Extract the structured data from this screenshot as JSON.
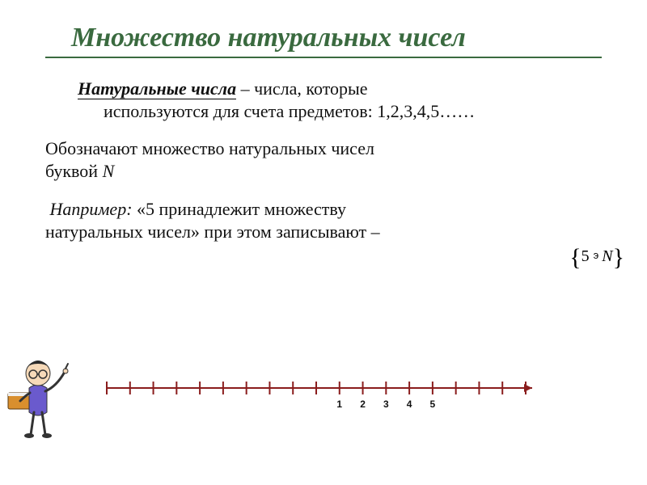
{
  "title": "Множество натуральных чисел",
  "definition": {
    "term": "Натуральные числа",
    "rest_first_line": " – числа, которые",
    "rest_wrapped": "используются для счета предметов: 1,2,3,4,5……"
  },
  "para2": {
    "line1": "Обозначают множество натуральных чисел",
    "line2_prefix": "буквой ",
    "symbol": "N"
  },
  "para3": {
    "example_word": "Например:",
    "rest_line1": "  «5 принадлежит множеству",
    "rest_line2": "натуральных чисел» при этом записывают –"
  },
  "notation": {
    "open": "{",
    "five": "5",
    "ni": "э",
    "n": "N",
    "close": "}"
  },
  "number_line": {
    "tick_count": 19,
    "labeled_start_index": 10,
    "labels": [
      "1",
      "2",
      "3",
      "4",
      "5"
    ],
    "axis_color": "#8a1d1d",
    "label_color": "#111111",
    "tick_height": 16,
    "label_fontsize": 12
  },
  "colors": {
    "title": "#3a6a3f",
    "text": "#111111",
    "background": "#ffffff"
  }
}
